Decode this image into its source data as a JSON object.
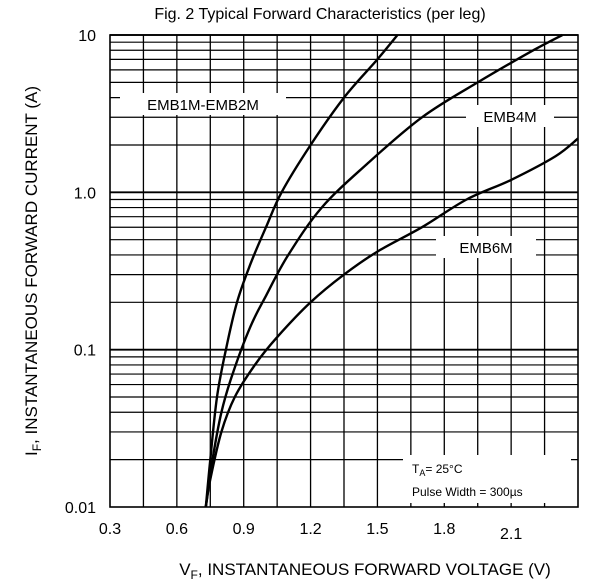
{
  "chart_data": {
    "type": "line",
    "title": "Fig. 2 Typical Forward Characteristics (per leg)",
    "xlabel": {
      "main": "V",
      "sub": "F",
      "rest": ", INSTANTANEOUS FORWARD VOLTAGE (V)"
    },
    "ylabel": {
      "main": "I",
      "sub": "F",
      "rest": ", INSTANTANEOUS FORWARD CURRENT (A)"
    },
    "xlim": [
      0.3,
      2.4
    ],
    "ylim": [
      0.01,
      10
    ],
    "y_scale": "log",
    "grid": true,
    "x_ticks": [
      "0.3",
      "0.6",
      "0.9",
      "1.2",
      "1.5",
      "1.8",
      "2.1"
    ],
    "y_ticks": [
      "0.01",
      "0.1",
      "1.0",
      "10"
    ],
    "series": [
      {
        "name": "EMB1M-EMB2M",
        "x": [
          0.73,
          0.75,
          0.78,
          0.82,
          0.87,
          0.93,
          1.0,
          1.07,
          1.2,
          1.35,
          1.5,
          1.59
        ],
        "y": [
          0.01,
          0.02,
          0.05,
          0.1,
          0.2,
          0.35,
          0.6,
          1.0,
          2.0,
          4.0,
          7.0,
          10.0
        ]
      },
      {
        "name": "EMB4M",
        "x": [
          0.73,
          0.76,
          0.8,
          0.85,
          0.93,
          1.0,
          1.1,
          1.25,
          1.45,
          1.7,
          1.95,
          2.2,
          2.33
        ],
        "y": [
          0.01,
          0.02,
          0.04,
          0.07,
          0.14,
          0.22,
          0.4,
          0.8,
          1.5,
          3.0,
          5.0,
          8.0,
          10.0
        ]
      },
      {
        "name": "EMB6M",
        "x": [
          0.73,
          0.75,
          0.8,
          0.86,
          0.95,
          1.05,
          1.2,
          1.35,
          1.5,
          1.7,
          1.9,
          2.1,
          2.3,
          2.4
        ],
        "y": [
          0.01,
          0.015,
          0.03,
          0.05,
          0.08,
          0.12,
          0.2,
          0.3,
          0.42,
          0.6,
          0.9,
          1.2,
          1.7,
          2.2
        ]
      }
    ],
    "annotations": {
      "ta_main": "T",
      "ta_sub": "A",
      "ta_rest": "= 25°C",
      "pulse": "Pulse Width = 300µs"
    }
  }
}
